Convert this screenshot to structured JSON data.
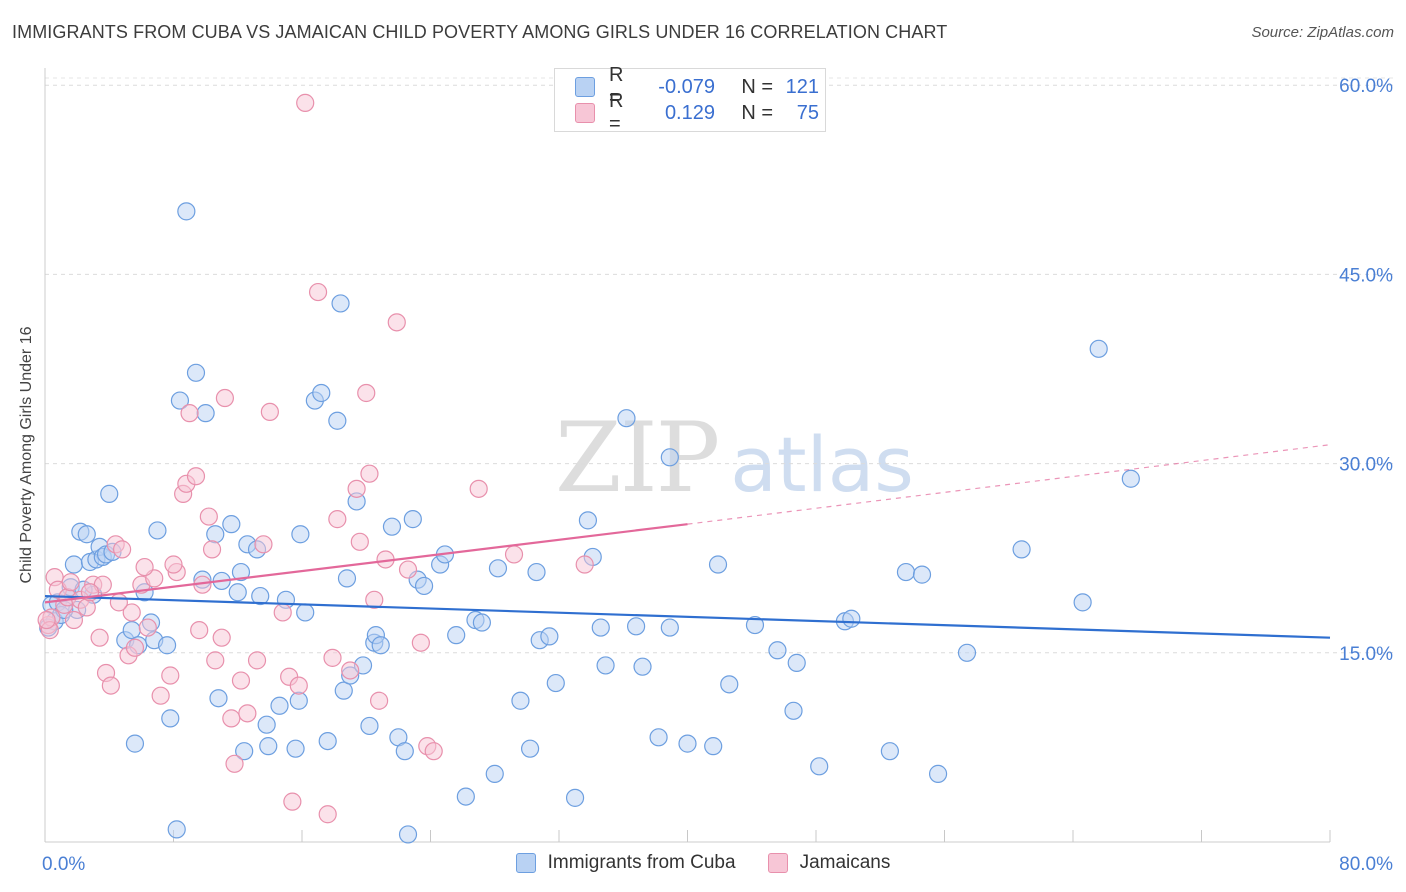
{
  "header": {
    "title": "IMMIGRANTS FROM CUBA VS JAMAICAN CHILD POVERTY AMONG GIRLS UNDER 16 CORRELATION CHART",
    "source": "Source: ZipAtlas.com"
  },
  "watermark": {
    "zip": "ZIP",
    "atlas": "atlas"
  },
  "legend": {
    "rows": [
      {
        "r_label": "R =",
        "r_value": "-0.079",
        "n_label": "N =",
        "n_value": "121",
        "color": "#a9c8f0"
      },
      {
        "r_label": "R =",
        "r_value": "0.129",
        "n_label": "N =",
        "n_value": "75",
        "color": "#f5b7cb"
      }
    ]
  },
  "chart_data": {
    "type": "scatter",
    "title": "IMMIGRANTS FROM CUBA VS JAMAICAN CHILD POVERTY AMONG GIRLS UNDER 16 CORRELATION CHART",
    "ylabel": "Child Poverty Among Girls Under 16",
    "xlim": [
      0,
      80
    ],
    "ylim": [
      0,
      62
    ],
    "x_tick_labels": [
      "0.0%",
      "80.0%"
    ],
    "y_ticks": [
      15,
      30,
      45,
      60
    ],
    "y_tick_labels": [
      "15.0%",
      "30.0%",
      "45.0%",
      "60.0%"
    ],
    "grid": true,
    "legend_position": "bottom-center",
    "series": [
      {
        "name": "Immigrants from Cuba",
        "color": "#6d9fe0",
        "fill": "#b9d2f3",
        "trend": {
          "x": [
            0,
            80
          ],
          "y": [
            19.5,
            16.2
          ],
          "color": "#2f6fd0"
        },
        "points": [
          [
            0.4,
            18.8
          ],
          [
            0.6,
            17.5
          ],
          [
            0.8,
            19.0
          ],
          [
            1.0,
            18.0
          ],
          [
            1.4,
            19.4
          ],
          [
            1.6,
            20.2
          ],
          [
            1.8,
            22.0
          ],
          [
            2.0,
            18.4
          ],
          [
            2.2,
            24.6
          ],
          [
            2.6,
            24.4
          ],
          [
            2.8,
            22.2
          ],
          [
            3.2,
            22.4
          ],
          [
            3.4,
            23.4
          ],
          [
            3.6,
            22.6
          ],
          [
            3.8,
            22.8
          ],
          [
            4.0,
            27.6
          ],
          [
            4.2,
            23.0
          ],
          [
            5.0,
            16.0
          ],
          [
            5.4,
            16.8
          ],
          [
            5.6,
            7.8
          ],
          [
            5.8,
            15.6
          ],
          [
            6.2,
            19.8
          ],
          [
            6.6,
            17.4
          ],
          [
            6.8,
            16.0
          ],
          [
            7.0,
            24.7
          ],
          [
            7.6,
            15.6
          ],
          [
            7.8,
            9.8
          ],
          [
            8.2,
            1.0
          ],
          [
            8.4,
            35.0
          ],
          [
            8.8,
            50.0
          ],
          [
            9.4,
            37.2
          ],
          [
            9.8,
            20.8
          ],
          [
            10.0,
            34.0
          ],
          [
            10.6,
            24.4
          ],
          [
            10.8,
            11.4
          ],
          [
            11.0,
            20.7
          ],
          [
            11.6,
            25.2
          ],
          [
            12.0,
            19.8
          ],
          [
            12.2,
            21.4
          ],
          [
            12.4,
            7.2
          ],
          [
            12.6,
            23.6
          ],
          [
            13.2,
            23.2
          ],
          [
            13.4,
            19.5
          ],
          [
            13.8,
            9.3
          ],
          [
            13.9,
            7.6
          ],
          [
            14.6,
            10.8
          ],
          [
            15.0,
            19.2
          ],
          [
            15.6,
            7.4
          ],
          [
            15.8,
            11.2
          ],
          [
            15.9,
            24.4
          ],
          [
            16.2,
            18.2
          ],
          [
            16.8,
            35.0
          ],
          [
            17.2,
            35.6
          ],
          [
            17.6,
            8.0
          ],
          [
            18.2,
            33.4
          ],
          [
            18.4,
            42.7
          ],
          [
            18.6,
            12.0
          ],
          [
            18.8,
            20.9
          ],
          [
            19.0,
            13.2
          ],
          [
            19.4,
            27.0
          ],
          [
            19.8,
            14.0
          ],
          [
            20.2,
            9.2
          ],
          [
            20.5,
            15.8
          ],
          [
            20.6,
            16.4
          ],
          [
            20.9,
            15.6
          ],
          [
            21.6,
            25.0
          ],
          [
            22.0,
            8.3
          ],
          [
            22.4,
            7.2
          ],
          [
            22.6,
            0.6
          ],
          [
            22.9,
            25.6
          ],
          [
            23.2,
            20.8
          ],
          [
            23.6,
            20.3
          ],
          [
            24.6,
            22.0
          ],
          [
            24.9,
            22.8
          ],
          [
            25.6,
            16.4
          ],
          [
            26.2,
            3.6
          ],
          [
            26.8,
            17.6
          ],
          [
            27.2,
            17.4
          ],
          [
            28.0,
            5.4
          ],
          [
            28.2,
            21.7
          ],
          [
            29.6,
            11.2
          ],
          [
            30.2,
            7.4
          ],
          [
            30.6,
            21.4
          ],
          [
            30.8,
            16.0
          ],
          [
            31.4,
            16.3
          ],
          [
            31.8,
            12.6
          ],
          [
            33.0,
            3.5
          ],
          [
            33.8,
            25.5
          ],
          [
            34.1,
            22.6
          ],
          [
            34.6,
            17.0
          ],
          [
            34.9,
            14.0
          ],
          [
            36.2,
            33.6
          ],
          [
            36.8,
            17.1
          ],
          [
            37.2,
            13.9
          ],
          [
            38.2,
            8.3
          ],
          [
            38.9,
            30.5
          ],
          [
            38.9,
            17.0
          ],
          [
            40.0,
            7.8
          ],
          [
            41.6,
            7.6
          ],
          [
            41.9,
            22.0
          ],
          [
            42.6,
            12.5
          ],
          [
            44.2,
            17.2
          ],
          [
            45.6,
            15.2
          ],
          [
            46.6,
            10.4
          ],
          [
            46.8,
            14.2
          ],
          [
            48.2,
            6.0
          ],
          [
            49.8,
            17.5
          ],
          [
            50.2,
            17.7
          ],
          [
            52.6,
            7.2
          ],
          [
            53.6,
            21.4
          ],
          [
            54.6,
            21.2
          ],
          [
            55.6,
            5.4
          ],
          [
            57.4,
            15.0
          ],
          [
            60.8,
            23.2
          ],
          [
            64.6,
            19.0
          ],
          [
            65.6,
            39.1
          ],
          [
            67.6,
            28.8
          ],
          [
            0.2,
            17.0
          ],
          [
            1.2,
            18.4
          ],
          [
            3.0,
            19.6
          ],
          [
            2.4,
            20.0
          ]
        ]
      },
      {
        "name": "Jamaicans",
        "color": "#e890ac",
        "fill": "#f7c6d6",
        "trend": {
          "x": [
            0,
            40
          ],
          "y": [
            19.0,
            25.2
          ],
          "color": "#e3689a"
        },
        "trend_extension": {
          "x": [
            40,
            80
          ],
          "y": [
            25.2,
            31.5
          ]
        },
        "points": [
          [
            0.2,
            17.2
          ],
          [
            0.4,
            17.8
          ],
          [
            0.6,
            21.0
          ],
          [
            0.8,
            20.0
          ],
          [
            1.2,
            18.8
          ],
          [
            1.4,
            19.4
          ],
          [
            1.8,
            17.6
          ],
          [
            2.2,
            19.2
          ],
          [
            2.6,
            18.6
          ],
          [
            3.0,
            20.4
          ],
          [
            3.4,
            16.2
          ],
          [
            3.6,
            20.4
          ],
          [
            3.8,
            13.4
          ],
          [
            4.1,
            12.4
          ],
          [
            4.4,
            23.6
          ],
          [
            4.8,
            23.2
          ],
          [
            5.2,
            14.8
          ],
          [
            5.4,
            18.2
          ],
          [
            5.6,
            15.4
          ],
          [
            6.0,
            20.4
          ],
          [
            6.4,
            17.0
          ],
          [
            6.8,
            20.9
          ],
          [
            7.2,
            11.6
          ],
          [
            7.8,
            13.2
          ],
          [
            8.2,
            21.4
          ],
          [
            8.6,
            27.6
          ],
          [
            8.8,
            28.4
          ],
          [
            9.0,
            34.0
          ],
          [
            9.4,
            29.0
          ],
          [
            9.6,
            16.8
          ],
          [
            9.8,
            20.4
          ],
          [
            10.2,
            25.8
          ],
          [
            10.4,
            23.2
          ],
          [
            10.6,
            14.4
          ],
          [
            11.0,
            16.2
          ],
          [
            11.2,
            35.2
          ],
          [
            11.6,
            9.8
          ],
          [
            11.8,
            6.2
          ],
          [
            12.2,
            12.8
          ],
          [
            12.6,
            10.2
          ],
          [
            13.2,
            14.4
          ],
          [
            13.6,
            23.6
          ],
          [
            14.0,
            34.1
          ],
          [
            14.8,
            18.2
          ],
          [
            15.2,
            13.1
          ],
          [
            15.4,
            3.2
          ],
          [
            15.8,
            12.4
          ],
          [
            16.2,
            58.6
          ],
          [
            17.0,
            43.6
          ],
          [
            17.6,
            2.2
          ],
          [
            17.9,
            14.6
          ],
          [
            18.2,
            25.6
          ],
          [
            19.0,
            13.6
          ],
          [
            19.4,
            28.0
          ],
          [
            19.6,
            23.8
          ],
          [
            20.0,
            35.6
          ],
          [
            20.2,
            29.2
          ],
          [
            20.5,
            19.2
          ],
          [
            20.8,
            11.2
          ],
          [
            21.2,
            22.4
          ],
          [
            21.9,
            41.2
          ],
          [
            22.6,
            21.6
          ],
          [
            23.4,
            15.8
          ],
          [
            23.8,
            7.6
          ],
          [
            24.2,
            7.2
          ],
          [
            27.0,
            28.0
          ],
          [
            29.2,
            22.8
          ],
          [
            33.6,
            22.0
          ],
          [
            0.3,
            16.8
          ],
          [
            1.6,
            20.6
          ],
          [
            2.8,
            19.8
          ],
          [
            4.6,
            19.0
          ],
          [
            6.2,
            21.8
          ],
          [
            8.0,
            22.0
          ],
          [
            0.1,
            17.6
          ]
        ]
      }
    ]
  }
}
